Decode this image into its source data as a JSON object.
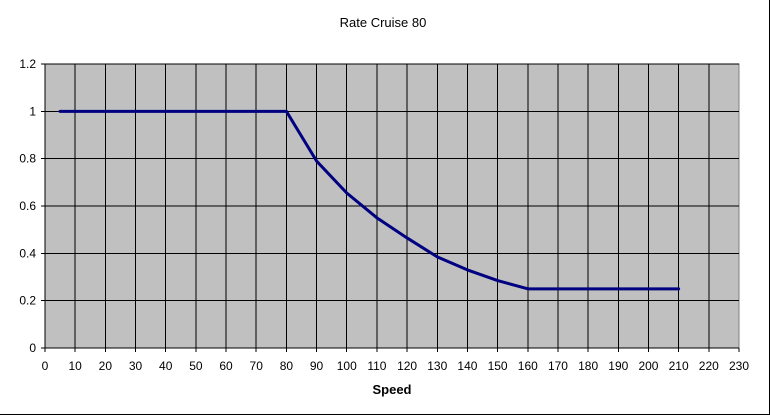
{
  "chart_data": {
    "type": "line",
    "title": "Rate Cruise 80",
    "xlabel": "Speed",
    "ylabel": "",
    "xlim": [
      0,
      230
    ],
    "ylim": [
      0,
      1.2
    ],
    "xticks": [
      0,
      10,
      20,
      30,
      40,
      50,
      60,
      70,
      80,
      90,
      100,
      110,
      120,
      130,
      140,
      150,
      160,
      170,
      180,
      190,
      200,
      210,
      220,
      230
    ],
    "yticks": [
      0,
      0.2,
      0.4,
      0.6,
      0.8,
      1,
      1.2
    ],
    "ytick_labels": [
      "0",
      "0.2",
      "0.4",
      "0.6",
      "0.8",
      "1",
      "1.2"
    ],
    "grid": true,
    "colors": {
      "plot_background": "#c0c0c0",
      "line": "#000080",
      "grid": "#000000"
    },
    "series": [
      {
        "x": [
          5,
          80,
          90,
          100,
          110,
          120,
          130,
          140,
          150,
          160,
          170,
          180,
          190,
          200,
          210
        ],
        "y": [
          1,
          1,
          0.79,
          0.655,
          0.55,
          0.465,
          0.385,
          0.33,
          0.285,
          0.25,
          0.25,
          0.25,
          0.25,
          0.25,
          0.25
        ]
      }
    ]
  }
}
